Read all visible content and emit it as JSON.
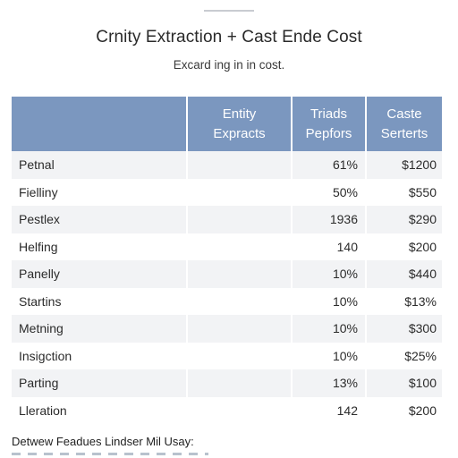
{
  "title": "Crnity Extraction + Cast Ende Cost",
  "subtitle": "Excard ing in in cost.",
  "table": {
    "headers": [
      "",
      "Entity\nExpracts",
      "Triads\nPepfors",
      "Caste\nSerterts"
    ],
    "rows": [
      {
        "name": "Petnal",
        "entity": "",
        "triads": "61%",
        "cost": "$1200"
      },
      {
        "name": "Fielliny",
        "entity": "",
        "triads": "50%",
        "cost": "$550"
      },
      {
        "name": "Pestlex",
        "entity": "",
        "triads": "1936",
        "cost": "$290"
      },
      {
        "name": "Helfing",
        "entity": "",
        "triads": "140",
        "cost": "$200"
      },
      {
        "name": "Panelly",
        "entity": "",
        "triads": "10%",
        "cost": "$440"
      },
      {
        "name": "Startins",
        "entity": "",
        "triads": "10%",
        "cost": "$13%"
      },
      {
        "name": "Metning",
        "entity": "",
        "triads": "10%",
        "cost": "$300"
      },
      {
        "name": "Insigction",
        "entity": "",
        "triads": "10%",
        "cost": "$25%"
      },
      {
        "name": "Parting",
        "entity": "",
        "triads": "13%",
        "cost": "$100"
      },
      {
        "name": "Lleration",
        "entity": "",
        "triads": "142",
        "cost": "$200"
      }
    ]
  },
  "footer": {
    "note": "Detwew Feadues Lindser Mil Usay:"
  },
  "colors": {
    "header_bg": "#7b97bf",
    "stripe_bg": "#f2f3f5"
  }
}
